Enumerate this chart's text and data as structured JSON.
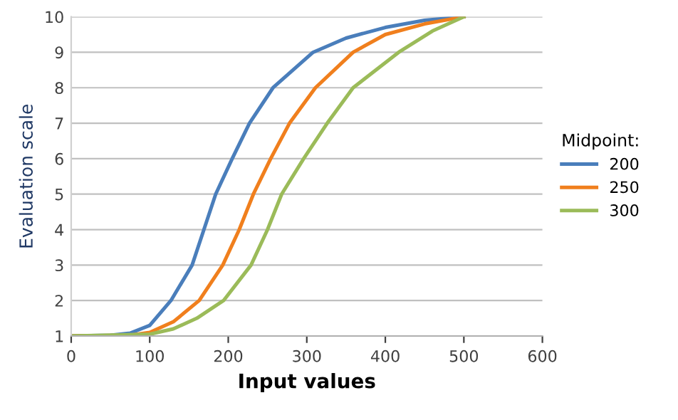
{
  "chart_data": {
    "type": "line",
    "xlabel": "Input values",
    "ylabel": "Evaluation scale",
    "legend_title": "Midpoint:",
    "series": [
      {
        "name": "200",
        "color": "#4a7ebb",
        "x": [
          0,
          50,
          75,
          100,
          127,
          154,
          169,
          184,
          205,
          227,
          257,
          308,
          350,
          400,
          450,
          500
        ],
        "values": [
          1,
          1.02,
          1.08,
          1.3,
          2,
          3,
          4,
          5,
          6,
          7,
          8,
          9,
          9.4,
          9.7,
          9.9,
          10
        ]
      },
      {
        "name": "250",
        "color": "#f07f1d",
        "x": [
          0,
          75,
          100,
          130,
          163,
          193,
          214,
          232,
          254,
          278,
          311,
          359,
          400,
          450,
          500
        ],
        "values": [
          1,
          1.02,
          1.1,
          1.4,
          2,
          3,
          4,
          5,
          6,
          7,
          8,
          9,
          9.5,
          9.8,
          10
        ]
      },
      {
        "name": "300",
        "color": "#9bbb59",
        "x": [
          0,
          100,
          130,
          160,
          194,
          229,
          250,
          268,
          296,
          326,
          359,
          417,
          460,
          500
        ],
        "values": [
          1,
          1.05,
          1.2,
          1.5,
          2,
          3,
          4,
          5,
          6,
          7,
          8,
          9,
          9.6,
          10
        ]
      }
    ],
    "xlim": [
      0,
      600
    ],
    "xticks": [
      0,
      100,
      200,
      300,
      400,
      500,
      600
    ],
    "ylim": [
      1,
      10
    ],
    "yticks": [
      1,
      2,
      3,
      4,
      5,
      6,
      7,
      8,
      9,
      10
    ],
    "grid": "y",
    "legend": "right",
    "marker": "none",
    "line_style": "solid"
  }
}
